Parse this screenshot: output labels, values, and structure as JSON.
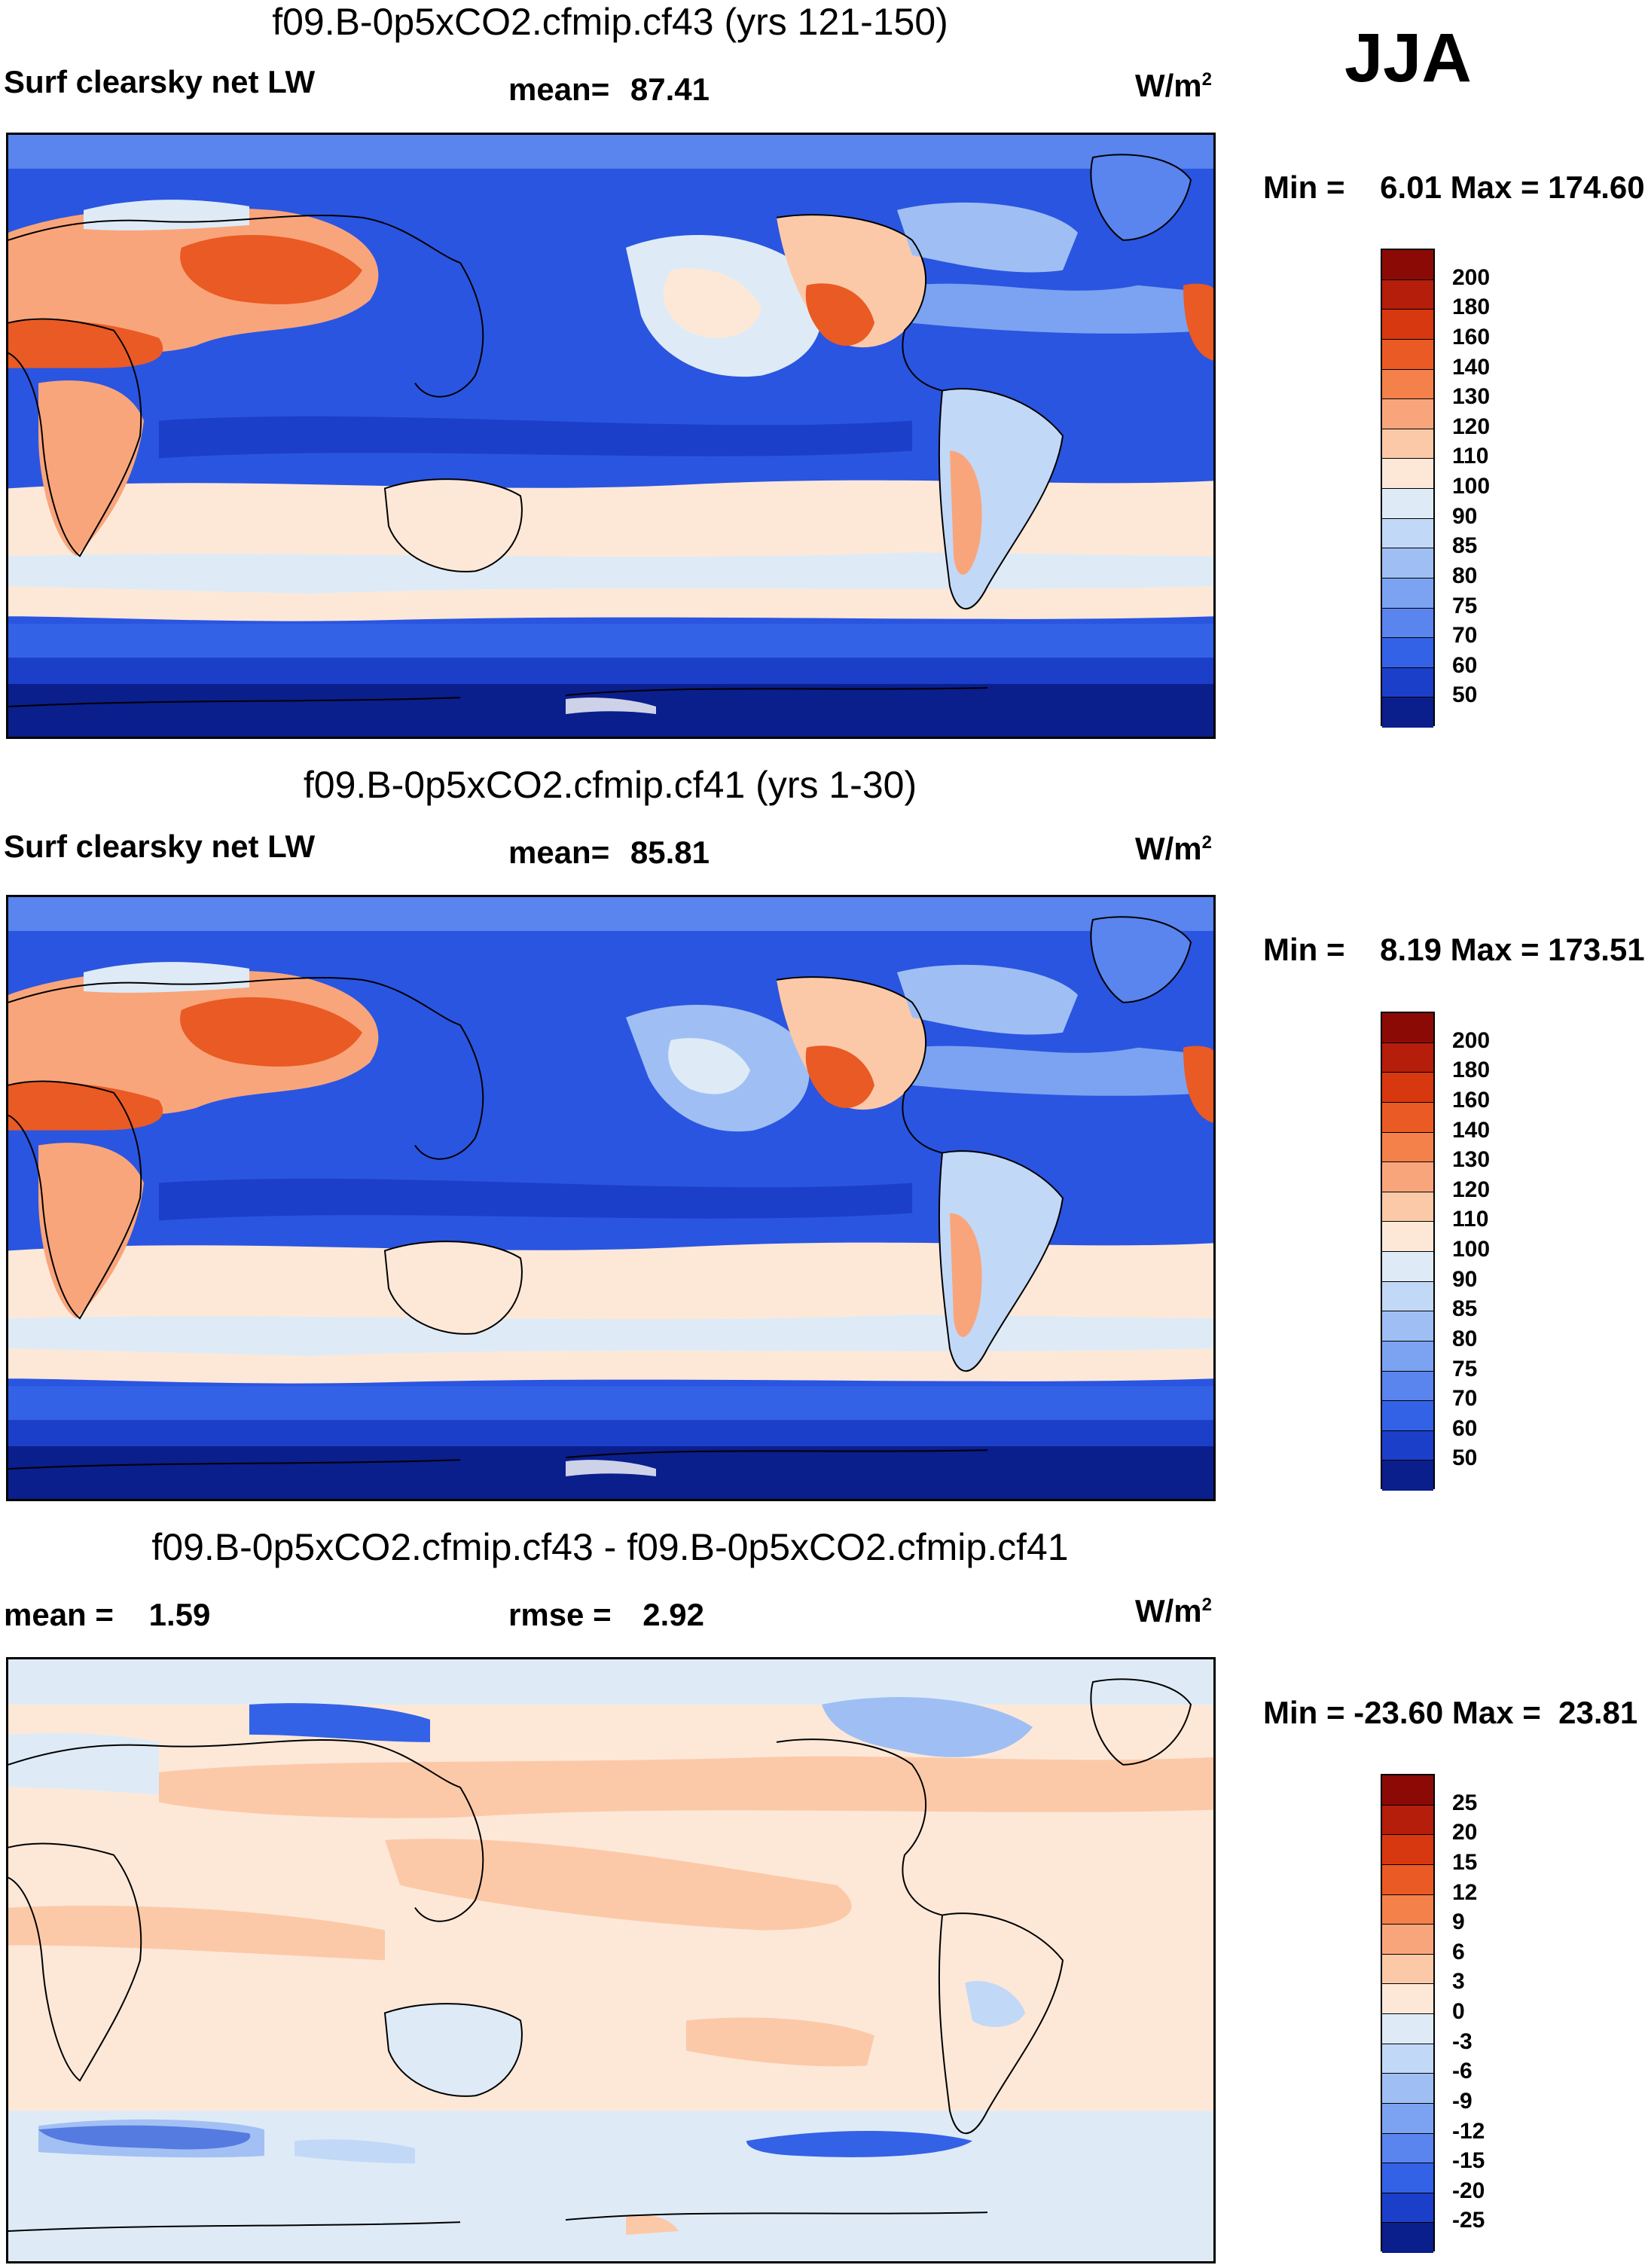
{
  "season": "JJA",
  "panels": [
    {
      "title": "f09.B-0p5xCO2.cfmip.cf43 (yrs 121-150)",
      "left": "Surf clearsky net LW",
      "center_label": "mean=",
      "center_value": "87.41",
      "units_base": "W/m",
      "units_sup": "2",
      "minmax": "Min =    6.01 Max = 174.60",
      "colorbar_levels": [
        "200",
        "180",
        "160",
        "140",
        "130",
        "120",
        "110",
        "100",
        "90",
        "85",
        "80",
        "75",
        "70",
        "60",
        "50"
      ],
      "colorbar_colors": [
        "#8c0a05",
        "#b41e0a",
        "#d8380f",
        "#ea5a24",
        "#f4804a",
        "#f9a57b",
        "#fcc9a8",
        "#fde8d8",
        "#deebf7",
        "#c2d8f7",
        "#9fbff4",
        "#7ba3f1",
        "#5a84ee",
        "#3462e6",
        "#1c3fc9",
        "#0a1e8c"
      ]
    },
    {
      "title": "f09.B-0p5xCO2.cfmip.cf41 (yrs 1-30)",
      "left": "Surf clearsky net LW",
      "center_label": "mean=",
      "center_value": "85.81",
      "units_base": "W/m",
      "units_sup": "2",
      "minmax": "Min =    8.19 Max = 173.51",
      "colorbar_levels": [
        "200",
        "180",
        "160",
        "140",
        "130",
        "120",
        "110",
        "100",
        "90",
        "85",
        "80",
        "75",
        "70",
        "60",
        "50"
      ],
      "colorbar_colors": [
        "#8c0a05",
        "#b41e0a",
        "#d8380f",
        "#ea5a24",
        "#f4804a",
        "#f9a57b",
        "#fcc9a8",
        "#fde8d8",
        "#deebf7",
        "#c2d8f7",
        "#9fbff4",
        "#7ba3f1",
        "#5a84ee",
        "#3462e6",
        "#1c3fc9",
        "#0a1e8c"
      ]
    },
    {
      "title": "f09.B-0p5xCO2.cfmip.cf43 - f09.B-0p5xCO2.cfmip.cf41",
      "left": "mean =    1.59",
      "center_label": "rmse =",
      "center_value": "2.92",
      "units_base": "W/m",
      "units_sup": "2",
      "minmax": "Min = -23.60 Max =  23.81",
      "colorbar_levels": [
        "25",
        "20",
        "15",
        "12",
        "9",
        "6",
        "3",
        "0",
        "-3",
        "-6",
        "-9",
        "-12",
        "-15",
        "-20",
        "-25"
      ],
      "colorbar_colors": [
        "#8c0a05",
        "#b41e0a",
        "#d8380f",
        "#ea5a24",
        "#f4804a",
        "#f9a57b",
        "#fcc9a8",
        "#fde8d8",
        "#deebf7",
        "#c2d8f7",
        "#9fbff4",
        "#7ba3f1",
        "#5a84ee",
        "#3462e6",
        "#1c3fc9",
        "#0a1e8c"
      ]
    }
  ]
}
